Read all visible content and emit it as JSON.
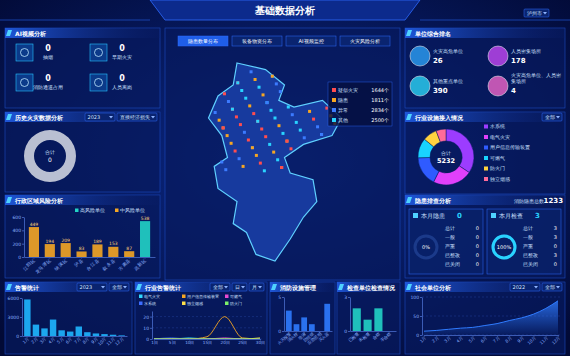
{
  "header": {
    "title": "基础数据分析",
    "region": "泸州市"
  },
  "ai_video": {
    "title": "AI视频分析",
    "items": [
      {
        "label": "抽烟",
        "value": 0
      },
      {
        "label": "早期火灾",
        "value": 0
      },
      {
        "label": "消防通道占用",
        "value": 0
      },
      {
        "label": "人员离岗",
        "value": 0
      }
    ]
  },
  "fire_history": {
    "title": "历史火灾数据分析",
    "selects": [
      "2023",
      "直接经济损失"
    ],
    "total_label": "合计",
    "total": 0
  },
  "map": {
    "tabs": [
      "隐患数量分布",
      "装备物资分布",
      "AI视频监控",
      "火灾风险分析"
    ],
    "legend": [
      {
        "label": "疑似火灾",
        "value": "1644个",
        "color": "#ff4d4f"
      },
      {
        "label": "隐患",
        "value": "1811个",
        "color": "#f5a623"
      },
      {
        "label": "异常",
        "value": "2834个",
        "color": "#3c7bff"
      },
      {
        "label": "其他",
        "value": "2500个",
        "color": "#29d3ff"
      }
    ]
  },
  "unit_ranking": {
    "title": "单位综合排名",
    "items": [
      {
        "label": "火灾高危单位",
        "value": 26
      },
      {
        "label": "人员密集场所",
        "value": 178
      },
      {
        "label": "其他重点单位",
        "value": 390
      },
      {
        "label": "火灾高危单位、人员密集场所",
        "value": 4
      }
    ]
  },
  "hazard": {
    "title": "隐患排查分析",
    "total_label": "消防隐患总数",
    "total": 1233,
    "cards": [
      {
        "label": "本月隐患",
        "value": 0,
        "rate": 0,
        "rate_label": "0%",
        "stats": [
          {
            "label": "总计",
            "value": 0
          },
          {
            "label": "一般",
            "value": 0
          },
          {
            "label": "严重",
            "value": 0
          },
          {
            "label": "已整改",
            "value": 0
          },
          {
            "label": "已关闭",
            "value": 0
          }
        ]
      },
      {
        "label": "本月检查",
        "value": 3,
        "rate": 100,
        "rate_label": "100%",
        "stats": [
          {
            "label": "总计",
            "value": 3
          },
          {
            "label": "一般",
            "value": 3
          },
          {
            "label": "严重",
            "value": 0
          },
          {
            "label": "已整改",
            "value": 3
          },
          {
            "label": "已关闭",
            "value": 0
          }
        ]
      }
    ]
  },
  "chart_data": [
    {
      "type": "bar",
      "title": "行政区域风险分析",
      "categories": [
        "江阳区",
        "龙马潭区",
        "纳溪区",
        "泸县",
        "合江县",
        "叙永县",
        "古蔺县",
        "高新区"
      ],
      "series": [
        {
          "name": "高风险单位",
          "color": "#22d3c5",
          "values": [
            null,
            null,
            null,
            null,
            null,
            null,
            null,
            538
          ]
        },
        {
          "name": "中风险单位",
          "color": "#f5a623",
          "values": [
            449,
            194,
            209,
            83,
            189,
            153,
            87,
            null
          ]
        }
      ],
      "ylim": [
        0,
        600
      ],
      "yticks": [
        0,
        200,
        400,
        600
      ],
      "data_labels": true,
      "legend": "top"
    },
    {
      "type": "bar",
      "title": "告警统计",
      "annotations": [
        "2023",
        "全部"
      ],
      "categories": [
        "1月",
        "2月",
        "3月",
        "4月",
        "5月",
        "6月",
        "7月",
        "8月",
        "9月",
        "10月",
        "11月",
        "12月"
      ],
      "values": [
        5771,
        1800,
        1200,
        2600,
        900,
        700,
        1500,
        600,
        400,
        300,
        200,
        100
      ],
      "color": "#1fb6ff",
      "ylim": [
        0,
        6000
      ],
      "yticks": [
        0,
        3000,
        6000
      ]
    },
    {
      "type": "line",
      "title": "行业告警统计",
      "annotations": [
        "全部",
        "日",
        "月"
      ],
      "categories": [
        "1日",
        "5日",
        "10日",
        "15日",
        "20日",
        "25日",
        "30日"
      ],
      "series": [
        {
          "name": "电气火灾",
          "color": "#2fd6ff",
          "values": [
            0,
            0,
            1,
            0,
            0,
            0,
            0
          ]
        },
        {
          "name": "用户信息传输装置",
          "color": "#f5a623",
          "values": [
            0,
            0,
            0,
            2,
            20,
            1,
            0
          ]
        },
        {
          "name": "可燃气",
          "color": "#e94bd2",
          "values": [
            0,
            0,
            0,
            0,
            1,
            0,
            0
          ]
        },
        {
          "name": "水系统",
          "color": "#3c6cff",
          "values": [
            0,
            1,
            0,
            0,
            0,
            0,
            0
          ]
        },
        {
          "name": "独立烟感",
          "color": "#ffe04a",
          "values": [
            0,
            0,
            0,
            0,
            0,
            0,
            1
          ]
        },
        {
          "name": "防火门",
          "color": "#7cf06a",
          "values": [
            0,
            0,
            0,
            0,
            0,
            0,
            0
          ]
        }
      ],
      "ylim": [
        0,
        25
      ],
      "yticks": [
        0,
        10,
        20
      ],
      "grid": true,
      "legend": "top"
    },
    {
      "type": "bar",
      "title": "消防设施管理",
      "categories": [
        "火灾报警",
        "消火栓",
        "喷淋",
        "防排烟",
        "应急照明",
        "灭火器"
      ],
      "values": [
        3,
        1,
        2,
        1,
        0,
        4
      ],
      "color": "#2f7bff",
      "ylim": [
        0,
        5
      ],
      "yticks": [
        0,
        5
      ]
    },
    {
      "type": "bar",
      "title": "检查单位检查情况",
      "categories": [
        "已检查",
        "未检查",
        "合格",
        "不合格"
      ],
      "values": [
        2,
        1,
        2,
        0
      ],
      "color": "#22d3c5",
      "ylim": [
        0,
        3
      ],
      "yticks": [
        0,
        3
      ]
    },
    {
      "type": "area",
      "title": "社会单位分析",
      "annotations": [
        "2022",
        "全部"
      ],
      "categories": [
        "1月",
        "2月",
        "3月",
        "4月",
        "5月",
        "6月",
        "7月",
        "8月",
        "9月",
        "10月",
        "11月",
        "12月"
      ],
      "values": [
        10,
        12,
        15,
        18,
        20,
        25,
        30,
        38,
        45,
        55,
        70,
        90
      ],
      "color": "#2f7bff",
      "ylim": [
        0,
        100
      ],
      "yticks": [
        0,
        50,
        100
      ],
      "grid": true
    },
    {
      "type": "pie",
      "title": "行业设施接入情况",
      "annotations": [
        "全部"
      ],
      "total_label": "合计",
      "total": 5232,
      "categories": [
        "水系统",
        "电气火灾",
        "用户信息传输装置",
        "可燃气",
        "防火门",
        "独立烟感"
      ],
      "values": [
        1800,
        1200,
        900,
        600,
        432,
        300
      ],
      "colors": [
        "#9c3cff",
        "#e040fb",
        "#2f5bff",
        "#19d3ff",
        "#ffd23f",
        "#ff6b9a"
      ]
    }
  ]
}
